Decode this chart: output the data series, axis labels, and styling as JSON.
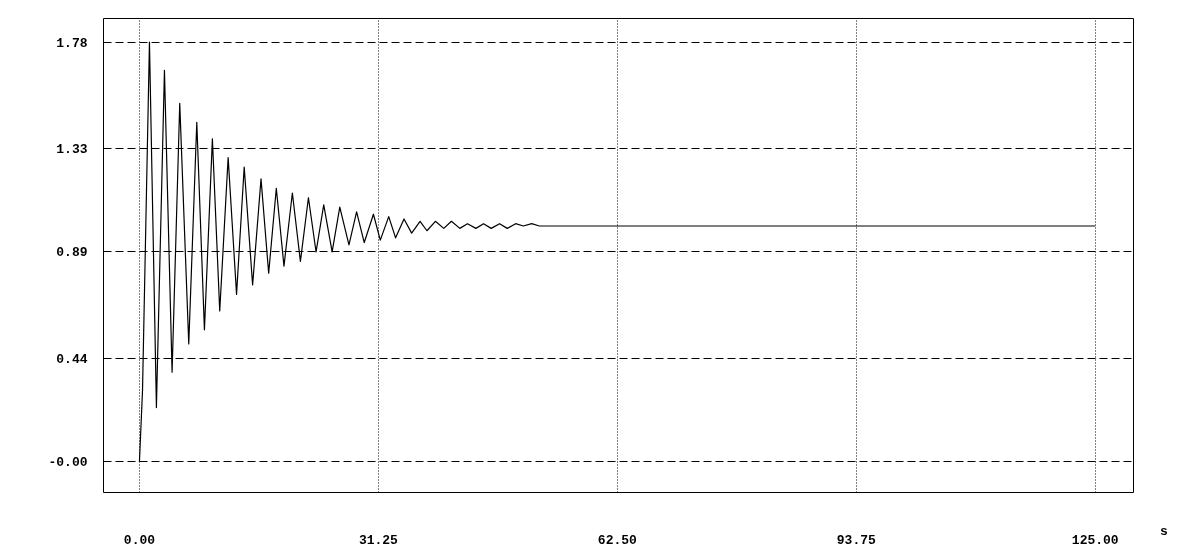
{
  "chart_data": {
    "type": "line",
    "xlabel": "s",
    "x": [
      0,
      0.4,
      1.31,
      2.22,
      3.27,
      4.27,
      5.27,
      6.45,
      7.5,
      8.5,
      9.54,
      10.5,
      11.6,
      12.7,
      13.7,
      14.8,
      15.9,
      16.9,
      17.9,
      18.9,
      20.0,
      21.05,
      22.1,
      23.1,
      24.1,
      25.2,
      26.2,
      27.4,
      28.4,
      29.4,
      30.6,
      31.5,
      32.6,
      33.5,
      34.6,
      35.6,
      36.7,
      37.6,
      38.7,
      39.8,
      40.8,
      41.9,
      42.9,
      44.0,
      45.0,
      46.0,
      47.1,
      48.1,
      49.2,
      50.2,
      51.3,
      52.3,
      53.4,
      56,
      60,
      125
    ],
    "values": [
      0,
      0.3,
      1.78,
      0.23,
      1.66,
      0.38,
      1.52,
      0.5,
      1.44,
      0.56,
      1.37,
      0.64,
      1.29,
      0.71,
      1.25,
      0.75,
      1.2,
      0.8,
      1.16,
      0.83,
      1.14,
      0.85,
      1.12,
      0.89,
      1.09,
      0.89,
      1.08,
      0.92,
      1.06,
      0.93,
      1.05,
      0.94,
      1.04,
      0.95,
      1.03,
      0.97,
      1.02,
      0.98,
      1.02,
      0.99,
      1.02,
      0.99,
      1.01,
      0.99,
      1.01,
      0.99,
      1.01,
      0.99,
      1.01,
      1.0,
      1.01,
      1.0,
      1.0,
      1.0,
      1.0,
      1.0
    ],
    "color": "#000000",
    "xlim": [
      -4.7,
      130
    ],
    "ylim": [
      -0.13,
      1.88
    ],
    "xticks": [
      {
        "value": 0,
        "label": "0.00"
      },
      {
        "value": 31.25,
        "label": "31.25"
      },
      {
        "value": 62.5,
        "label": "62.50"
      },
      {
        "value": 93.75,
        "label": "93.75"
      },
      {
        "value": 125,
        "label": "125.00"
      }
    ],
    "yticks": [
      {
        "value": 0,
        "label": "-0.00"
      },
      {
        "value": 0.44,
        "label": "0.44"
      },
      {
        "value": 0.89,
        "label": "0.89"
      },
      {
        "value": 1.33,
        "label": "1.33"
      },
      {
        "value": 1.78,
        "label": "1.78"
      }
    ],
    "grid": true,
    "marker": "none",
    "line_style": "solid"
  }
}
